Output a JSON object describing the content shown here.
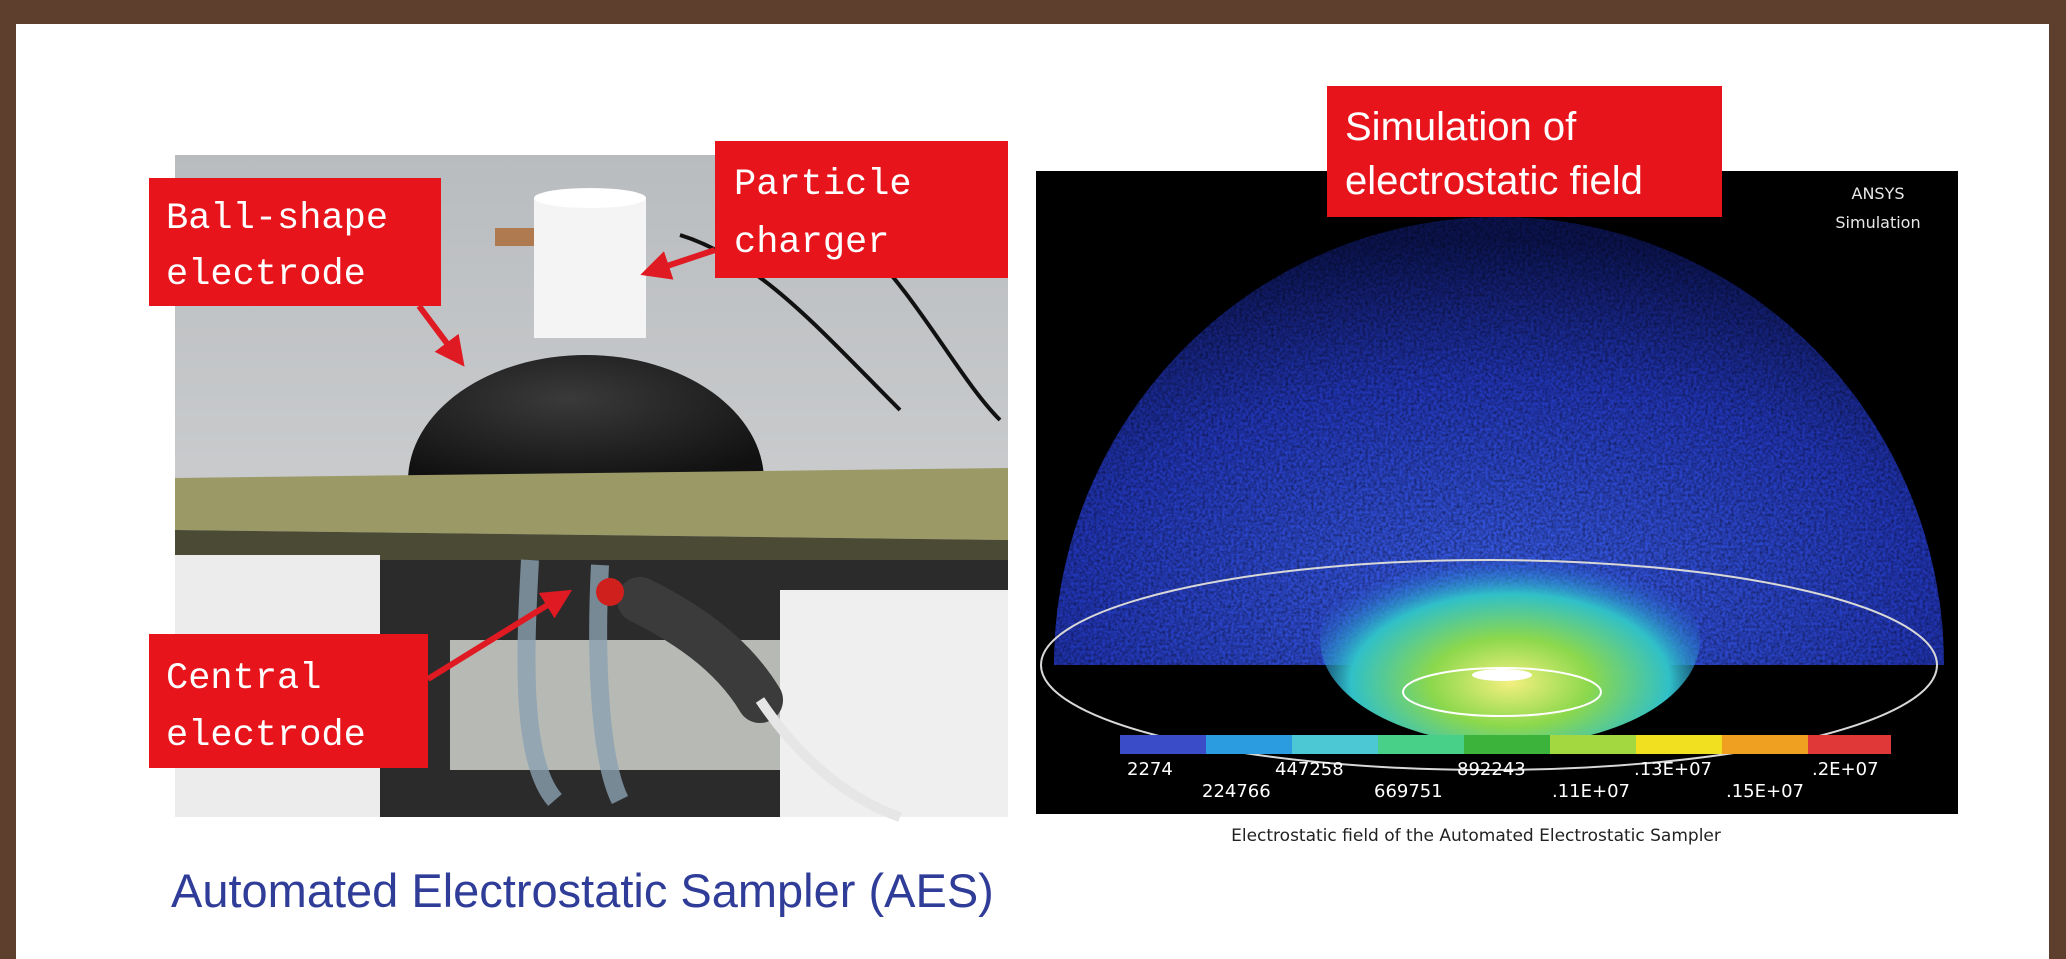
{
  "photo": {
    "labels": [
      "Ball-shape",
      "electrode",
      "Particle",
      "charger",
      "Central",
      "electrode"
    ]
  },
  "simulation": {
    "title": [
      "Simulation of",
      "electrostatic field"
    ],
    "watermark": [
      "ANSYS",
      "Simulation"
    ],
    "colorbar_labels": [
      "2274",
      "224766",
      "447258",
      "669751",
      "892243",
      ".11E+07",
      ".13E+07",
      ".15E+07",
      ".2E+07"
    ],
    "caption": "Electrostatic field of the Automated Electrostatic Sampler"
  },
  "title": "Automated Electrostatic Sampler (AES)"
}
